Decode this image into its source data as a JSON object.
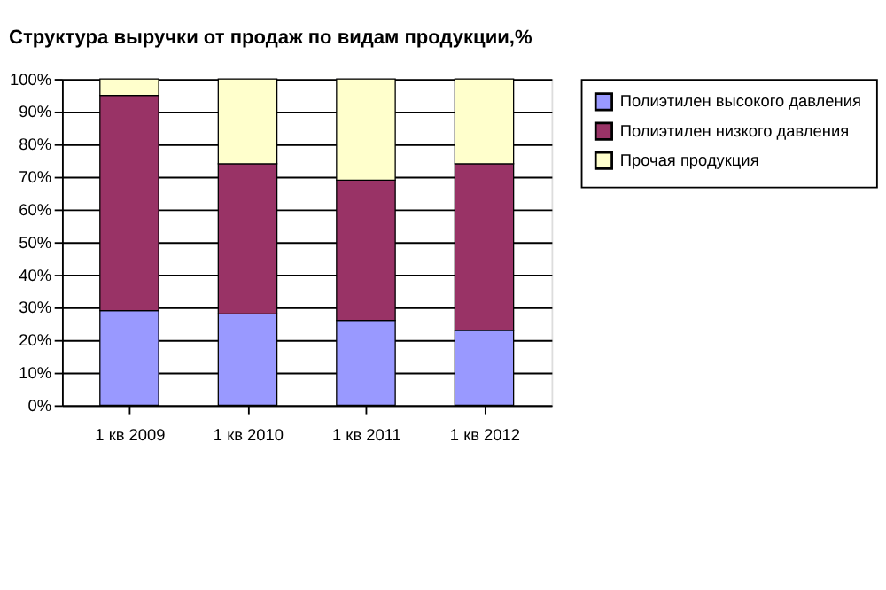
{
  "chart_data": {
    "type": "bar",
    "stacked": true,
    "title": "Структура выручки от продаж по видам продукции,%",
    "categories": [
      "1 кв 2009",
      "1 кв 2010",
      "1 кв 2011",
      "1 кв 2012"
    ],
    "series": [
      {
        "name": "Полиэтилен высокого давления",
        "color": "#9999ff",
        "values": [
          29,
          28,
          26,
          23
        ]
      },
      {
        "name": "Полиэтилен низкого давления",
        "color": "#993366",
        "values": [
          66,
          46,
          43,
          51
        ]
      },
      {
        "name": "Прочая продукция",
        "color": "#ffffcc",
        "values": [
          5,
          26,
          31,
          26
        ]
      }
    ],
    "ylim": [
      0,
      100
    ],
    "yticks": [
      {
        "value": 0,
        "label": "0%"
      },
      {
        "value": 10,
        "label": "10%"
      },
      {
        "value": 20,
        "label": "20%"
      },
      {
        "value": 30,
        "label": "30%"
      },
      {
        "value": 40,
        "label": "40%"
      },
      {
        "value": 50,
        "label": "50%"
      },
      {
        "value": 60,
        "label": "60%"
      },
      {
        "value": 70,
        "label": "70%"
      },
      {
        "value": 80,
        "label": "80%"
      },
      {
        "value": 90,
        "label": "90%"
      },
      {
        "value": 100,
        "label": "100%"
      }
    ],
    "grid": "y",
    "legend": "right"
  }
}
